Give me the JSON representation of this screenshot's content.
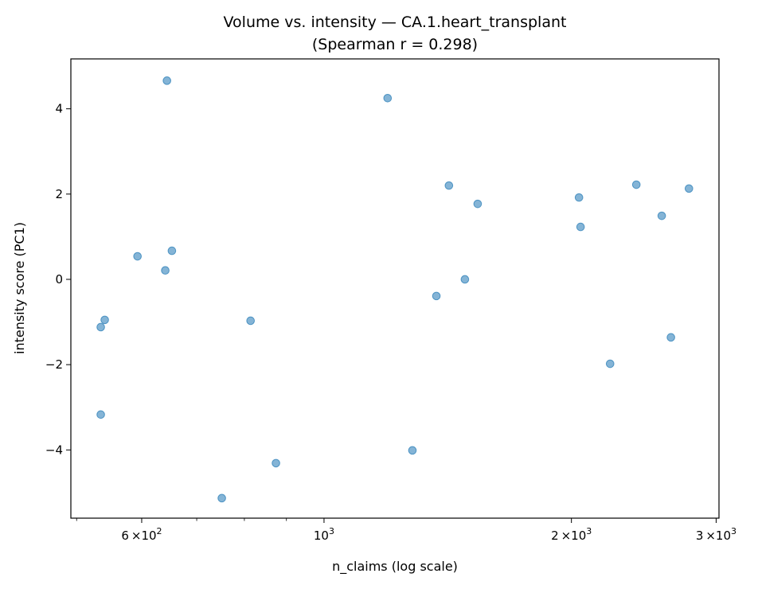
{
  "chart_data": {
    "type": "scatter",
    "title": "Volume vs. intensity — CA.1.heart_transplant",
    "subtitle": "(Spearman r = 0.298)",
    "xlabel": "n_claims (log scale)",
    "ylabel": "intensity score (PC1)",
    "xscale": "log",
    "xlim": [
      492,
      3024
    ],
    "ylim": [
      -5.6,
      5.17
    ],
    "grid": false,
    "point_color": "#1f77b4",
    "x_ticks": [
      {
        "value": 600,
        "base": "6",
        "mult": "×10",
        "exp": "2"
      },
      {
        "value": 1000,
        "base": "",
        "mult": "10",
        "exp": "3"
      },
      {
        "value": 2000,
        "base": "2",
        "mult": "×10",
        "exp": "3"
      },
      {
        "value": 3000,
        "base": "3",
        "mult": "×10",
        "exp": "3"
      }
    ],
    "x_minor_ticks": [
      500,
      700,
      800,
      900
    ],
    "y_ticks": [
      {
        "value": 4,
        "label": "4"
      },
      {
        "value": 2,
        "label": "2"
      },
      {
        "value": 0,
        "label": "0"
      },
      {
        "value": -2,
        "label": "−2"
      },
      {
        "value": -4,
        "label": "−4"
      }
    ],
    "points": [
      {
        "x": 644,
        "y": 4.66
      },
      {
        "x": 1195,
        "y": 4.25
      },
      {
        "x": 1419,
        "y": 2.2
      },
      {
        "x": 1538,
        "y": 1.77
      },
      {
        "x": 2043,
        "y": 1.92
      },
      {
        "x": 2052,
        "y": 1.23
      },
      {
        "x": 2399,
        "y": 2.22
      },
      {
        "x": 2576,
        "y": 1.49
      },
      {
        "x": 2780,
        "y": 2.13
      },
      {
        "x": 593,
        "y": 0.54
      },
      {
        "x": 653,
        "y": 0.67
      },
      {
        "x": 641,
        "y": 0.21
      },
      {
        "x": 1370,
        "y": -0.39
      },
      {
        "x": 1484,
        "y": 0.0
      },
      {
        "x": 541,
        "y": -0.95
      },
      {
        "x": 535,
        "y": -1.12
      },
      {
        "x": 814,
        "y": -0.97
      },
      {
        "x": 2643,
        "y": -1.36
      },
      {
        "x": 2229,
        "y": -1.98
      },
      {
        "x": 535,
        "y": -3.17
      },
      {
        "x": 1281,
        "y": -4.01
      },
      {
        "x": 874,
        "y": -4.31
      },
      {
        "x": 751,
        "y": -5.13
      }
    ]
  }
}
